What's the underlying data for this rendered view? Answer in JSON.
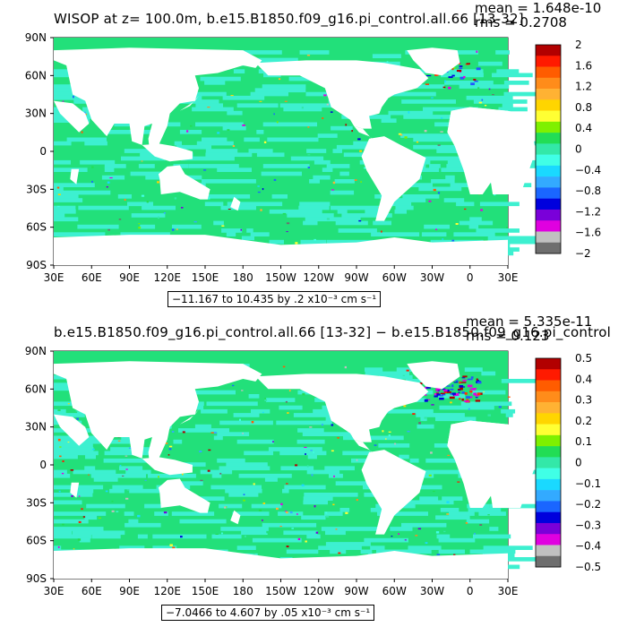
{
  "top": {
    "title": "WISOP at z= 100.0m, b.e15.B1850.f09_g16.pi_control.all.66 [13-32]",
    "mean": "mean = 1.648e-10",
    "rms": "rms = 0.2708",
    "range_text": "−11.167 to 10.435 by .2 x10⁻³ cm s⁻¹",
    "lat_labels": [
      "90N",
      "60N",
      "30N",
      "0",
      "30S",
      "60S",
      "90S"
    ],
    "lon_labels": [
      "30E",
      "60E",
      "90E",
      "120E",
      "150E",
      "180",
      "150W",
      "120W",
      "90W",
      "60W",
      "30W",
      "0",
      "30E"
    ],
    "colorbar_labels": [
      "2",
      "1.6",
      "1.2",
      "0.8",
      "0.4",
      "0",
      "−0.4",
      "−0.8",
      "−1.2",
      "−1.6",
      "−2"
    ]
  },
  "bottom": {
    "title": "b.e15.B1850.f09_g16.pi_control.all.66 [13-32] − b.e15.B1850.f09_g16.pi_control",
    "mean": "mean = 5.335e-11",
    "rms": "rms = 0.123",
    "range_text": "−7.0466 to 4.607 by .05 x10⁻³ cm s⁻¹",
    "lat_labels": [
      "90N",
      "60N",
      "30N",
      "0",
      "30S",
      "60S",
      "90S"
    ],
    "lon_labels": [
      "30E",
      "60E",
      "90E",
      "120E",
      "150E",
      "180",
      "150W",
      "120W",
      "90W",
      "60W",
      "30W",
      "0",
      "30E"
    ],
    "colorbar_labels": [
      "0.5",
      "0.4",
      "0.3",
      "0.2",
      "0.1",
      "0",
      "−0.1",
      "−0.2",
      "−0.3",
      "−0.4",
      "−0.5"
    ]
  },
  "colorbar_colors": [
    "#b20000",
    "#ff1a00",
    "#ff5c00",
    "#ff8c1a",
    "#ffb233",
    "#ffd500",
    "#ffff33",
    "#7ff000",
    "#22dd55",
    "#33e8a8",
    "#40ffe6",
    "#1ad9ff",
    "#33aaff",
    "#1a66ff",
    "#0000dd",
    "#7a00d9",
    "#e000e0",
    "#c0c0c0",
    "#6e6e6e"
  ],
  "map_colors": {
    "ocean_base": "#22e07a",
    "ocean_alt": "#3df0d0",
    "land": "#ffffff",
    "positive": "#ff3300",
    "negative": "#2255ff"
  }
}
